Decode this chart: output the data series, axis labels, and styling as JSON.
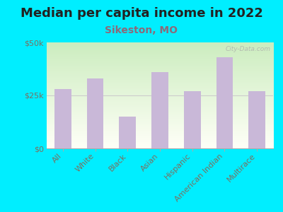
{
  "title": "Median per capita income in 2022",
  "subtitle": "Sikeston, MO",
  "categories": [
    "All",
    "White",
    "Black",
    "Asian",
    "Hispanic",
    "American Indian",
    "Multirace"
  ],
  "values": [
    28000,
    33000,
    15000,
    36000,
    27000,
    43000,
    27000
  ],
  "bar_color": "#c9b8d8",
  "background_outer": "#00eeff",
  "title_color": "#222222",
  "subtitle_color": "#8b6a7a",
  "tick_label_color": "#7b7060",
  "watermark": "City-Data.com",
  "ylim": [
    0,
    50000
  ],
  "ytick_labels": [
    "$0",
    "$25k",
    "$50k"
  ],
  "title_fontsize": 13,
  "subtitle_fontsize": 10,
  "tick_fontsize": 8,
  "grad_colors": [
    "#c8e8c0",
    "#f0f0e0",
    "#ffffff"
  ],
  "hline_y": 25000,
  "hline_color": "#cccccc"
}
